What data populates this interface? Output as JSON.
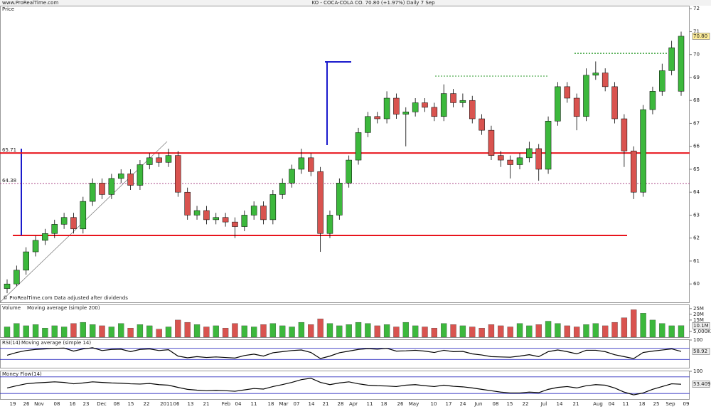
{
  "header": {
    "site": "www.ProRealTime.com",
    "title": "KO - COCA-COLA CO.   70.80 (+1.97%)   Daily 7 Sep"
  },
  "footer": "© ProRealTime.com  Data adjusted after dividends",
  "x_axis_labels": [
    "19",
    "26",
    "Nov",
    "08",
    "16",
    "23",
    "Dec",
    "08",
    "15",
    "22",
    "2011",
    "06",
    "13",
    "21",
    "Feb",
    "04",
    "11",
    "18",
    "Mar",
    "07",
    "14",
    "21",
    "28",
    "Apr",
    "11",
    "18",
    "26",
    "May",
    "10",
    "17",
    "24",
    "Jun",
    "08",
    "15",
    "22",
    "Jul",
    "14",
    "21",
    "Aug",
    "04",
    "11",
    "18",
    "25",
    "Sep",
    "09"
  ],
  "chart_data": [
    {
      "type": "candlestick",
      "title": "Price",
      "up_color": "#3cb83c",
      "down_color": "#d9534f",
      "ylim": [
        59.2,
        72.1
      ],
      "yticks": [
        60,
        61,
        62,
        63,
        64,
        65,
        66,
        67,
        68,
        69,
        70,
        71,
        72
      ],
      "levels": [
        65.71,
        64.38
      ],
      "level_colors": [
        "#e8141c",
        "#a0307a"
      ],
      "last_value": {
        "value": 70.8,
        "label": "70.80"
      },
      "open": [
        59.8,
        60.0,
        60.6,
        61.4,
        61.9,
        62.2,
        62.6,
        62.9,
        62.4,
        63.6,
        64.4,
        63.9,
        64.6,
        64.8,
        64.3,
        65.2,
        65.5,
        65.3,
        65.6,
        64.0,
        63.0,
        63.2,
        62.8,
        62.9,
        62.7,
        62.5,
        63.0,
        63.4,
        62.8,
        63.9,
        64.4,
        65.0,
        65.5,
        64.9,
        62.2,
        63.0,
        64.4,
        65.4,
        66.6,
        67.3,
        67.2,
        68.1,
        67.4,
        67.5,
        67.9,
        67.7,
        67.3,
        68.3,
        67.9,
        68.0,
        67.2,
        66.7,
        65.6,
        65.4,
        65.2,
        65.5,
        65.9,
        65.0,
        67.1,
        68.6,
        68.1,
        67.3,
        69.1,
        69.2,
        68.6,
        67.2,
        65.8,
        64.0,
        67.6,
        68.4,
        69.3,
        68.4
      ],
      "high": [
        60.2,
        60.8,
        61.6,
        62.1,
        62.4,
        62.8,
        63.1,
        63.1,
        63.8,
        64.6,
        64.6,
        64.8,
        65.0,
        65.0,
        65.4,
        65.7,
        65.7,
        65.9,
        65.8,
        64.2,
        63.4,
        63.4,
        63.1,
        63.1,
        62.9,
        63.2,
        63.6,
        63.6,
        64.1,
        64.6,
        65.2,
        65.9,
        65.7,
        65.1,
        63.2,
        64.6,
        65.6,
        66.8,
        67.5,
        67.5,
        68.4,
        68.3,
        67.7,
        68.1,
        68.1,
        67.9,
        68.7,
        68.5,
        68.3,
        68.2,
        67.4,
        66.9,
        65.8,
        65.6,
        65.7,
        66.2,
        66.1,
        67.3,
        68.8,
        68.8,
        68.3,
        69.4,
        69.7,
        69.4,
        68.8,
        67.4,
        66.0,
        67.8,
        68.6,
        69.6,
        70.6,
        71.0
      ],
      "low": [
        59.6,
        59.9,
        60.4,
        61.2,
        61.7,
        62.0,
        62.4,
        62.2,
        62.2,
        63.4,
        63.7,
        63.7,
        64.4,
        64.1,
        64.1,
        65.0,
        65.1,
        65.1,
        63.8,
        62.8,
        62.8,
        62.6,
        62.6,
        62.5,
        62.0,
        62.3,
        62.8,
        62.6,
        62.6,
        63.7,
        64.2,
        64.8,
        64.7,
        61.4,
        62.0,
        62.8,
        64.2,
        65.2,
        66.4,
        67.0,
        67.0,
        67.2,
        66.0,
        67.3,
        67.5,
        67.1,
        67.1,
        67.7,
        67.7,
        67.0,
        66.5,
        65.4,
        65.1,
        64.6,
        65.0,
        65.3,
        64.5,
        64.8,
        66.9,
        67.9,
        66.7,
        67.1,
        68.9,
        68.4,
        67.0,
        65.1,
        63.7,
        63.8,
        67.4,
        68.2,
        69.1,
        68.2
      ],
      "close": [
        60.0,
        60.6,
        61.4,
        61.9,
        62.2,
        62.6,
        62.9,
        62.4,
        63.6,
        64.4,
        63.9,
        64.6,
        64.8,
        64.3,
        65.2,
        65.5,
        65.3,
        65.6,
        64.0,
        63.0,
        63.2,
        62.8,
        62.9,
        62.7,
        62.5,
        63.0,
        63.4,
        62.8,
        63.9,
        64.4,
        65.0,
        65.5,
        64.9,
        62.2,
        63.0,
        64.4,
        65.4,
        66.6,
        67.3,
        67.2,
        68.1,
        67.4,
        67.5,
        67.9,
        67.7,
        67.3,
        68.3,
        67.9,
        68.0,
        67.2,
        66.7,
        65.6,
        65.4,
        65.2,
        65.5,
        65.9,
        65.0,
        67.1,
        68.6,
        68.1,
        67.3,
        69.1,
        69.2,
        68.6,
        67.2,
        65.8,
        64.0,
        67.6,
        68.4,
        69.3,
        70.3,
        70.8
      ]
    },
    {
      "type": "bar",
      "title": "Volume",
      "subtitle": "Moving average (simple 200)",
      "ylim": [
        0,
        28000000
      ],
      "yticks": [
        {
          "value": 25000000,
          "label": "25M"
        },
        {
          "value": 20000000,
          "label": "20M"
        },
        {
          "value": 15000000,
          "label": "15M"
        },
        {
          "value": 5000000,
          "label": "5,000K"
        }
      ],
      "last_value": {
        "value": 10100000,
        "label": "10.1M"
      },
      "values": [
        9000000,
        12000000,
        10000000,
        11000000,
        8000000,
        10000000,
        9000000,
        12000000,
        13000000,
        11000000,
        10000000,
        9000000,
        12000000,
        8000000,
        11000000,
        10000000,
        7000000,
        9000000,
        15000000,
        13000000,
        11000000,
        9000000,
        10000000,
        8000000,
        12000000,
        10000000,
        9000000,
        11000000,
        12000000,
        10000000,
        9000000,
        13000000,
        11000000,
        16000000,
        12000000,
        10000000,
        11000000,
        13000000,
        12000000,
        10000000,
        11000000,
        9000000,
        13000000,
        10000000,
        9000000,
        8000000,
        12000000,
        11000000,
        10000000,
        9000000,
        8000000,
        11000000,
        10000000,
        9000000,
        12000000,
        10000000,
        11000000,
        14000000,
        12000000,
        10000000,
        9000000,
        11000000,
        12000000,
        10000000,
        13000000,
        17000000,
        24000000,
        21000000,
        15000000,
        12000000,
        10000000,
        10100000
      ]
    },
    {
      "type": "line",
      "title": "RSI(14)",
      "subtitle": "Moving average (simple 14)",
      "color": "#000000",
      "ylim": [
        0,
        100
      ],
      "yticks": [
        100
      ],
      "levels": [
        70,
        30
      ],
      "level_colors": [
        "#3030c0",
        "#3030c0"
      ],
      "last_value": {
        "value": 58.92,
        "label": "58.92"
      },
      "values": [
        45,
        55,
        62,
        66,
        68,
        70,
        71,
        60,
        68,
        72,
        62,
        66,
        67,
        58,
        66,
        68,
        62,
        65,
        42,
        36,
        40,
        37,
        39,
        37,
        35,
        44,
        49,
        42,
        54,
        58,
        62,
        64,
        55,
        33,
        42,
        54,
        60,
        66,
        69,
        67,
        70,
        60,
        61,
        63,
        60,
        55,
        63,
        58,
        59,
        50,
        46,
        40,
        39,
        38,
        42,
        47,
        40,
        58,
        64,
        58,
        50,
        63,
        63,
        58,
        47,
        40,
        33,
        55,
        60,
        64,
        68,
        58.92
      ]
    },
    {
      "type": "line",
      "title": "Money Flow(14)",
      "color": "#000000",
      "ylim": [
        0,
        100
      ],
      "yticks": [
        100
      ],
      "levels": [
        80,
        20
      ],
      "level_colors": [
        "#3030c0",
        "#3030c0"
      ],
      "last_value": {
        "value": 53.409,
        "label": "53.409"
      },
      "values": [
        40,
        48,
        55,
        58,
        60,
        62,
        60,
        55,
        58,
        62,
        60,
        58,
        57,
        55,
        54,
        56,
        52,
        50,
        42,
        35,
        32,
        30,
        31,
        30,
        28,
        33,
        38,
        36,
        45,
        52,
        60,
        70,
        75,
        60,
        52,
        58,
        62,
        55,
        50,
        48,
        47,
        45,
        50,
        52,
        48,
        45,
        50,
        46,
        44,
        40,
        35,
        30,
        25,
        22,
        22,
        25,
        23,
        35,
        42,
        45,
        40,
        48,
        52,
        50,
        40,
        25,
        15,
        22,
        35,
        45,
        55,
        53.409
      ]
    }
  ]
}
